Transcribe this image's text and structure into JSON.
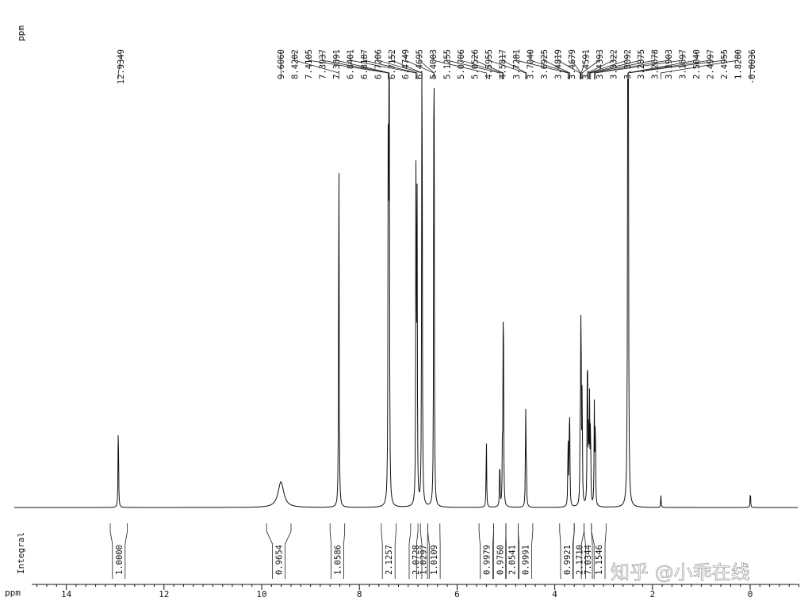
{
  "chart_data": {
    "type": "line",
    "title": "",
    "xlabel": "ppm",
    "ylabel": "",
    "xlim": [
      15.4,
      -1.2
    ],
    "x_axis_reversed": true,
    "x_tick_labels": [
      "14",
      "12",
      "10",
      "8",
      "6",
      "4",
      "2",
      "0"
    ],
    "peak_unit_label": "ppm",
    "integral_axis_label": "Integral",
    "peak_labels": [
      "12.9349",
      "9.6060",
      "8.4202",
      "7.4105",
      "7.3937",
      "7.3891",
      "6.8401",
      "6.8187",
      "6.7206",
      "6.7152",
      "6.4749",
      "6.4695",
      "5.4003",
      "5.1255",
      "5.0706",
      "5.0526",
      "4.5955",
      "4.5817",
      "3.7281",
      "3.7040",
      "3.6925",
      "3.4819",
      "3.4679",
      "3.4591",
      "3.4393",
      "3.3322",
      "3.3092",
      "3.2875",
      "3.2678",
      "3.1903",
      "3.1697",
      "2.5040",
      "2.4997",
      "2.4955",
      "1.8280",
      "-0.0036"
    ],
    "series": [
      {
        "x": [
          12.935,
          9.606,
          8.42,
          7.41,
          7.394,
          7.389,
          6.84,
          6.819,
          6.721,
          6.715,
          6.475,
          6.47,
          5.4,
          5.126,
          5.071,
          5.053,
          4.596,
          4.582,
          3.728,
          3.704,
          3.693,
          3.482,
          3.468,
          3.459,
          3.439,
          3.332,
          3.309,
          3.288,
          3.268,
          3.19,
          3.17,
          2.504,
          2.5,
          2.496,
          1.828,
          -0.004
        ],
        "y": [
          0.22,
          0.06,
          0.95,
          0.75,
          0.92,
          0.72,
          0.9,
          0.7,
          0.78,
          0.62,
          0.76,
          0.6,
          0.17,
          0.12,
          0.13,
          0.58,
          0.23,
          0.1,
          0.16,
          0.15,
          0.17,
          0.12,
          0.35,
          0.25,
          0.28,
          0.43,
          0.18,
          0.24,
          0.2,
          0.23,
          0.22,
          0.9,
          0.95,
          0.88,
          0.03,
          0.04
        ]
      }
    ],
    "integrals": [
      {
        "value": "1.0000",
        "from": 13.1,
        "to": 12.75
      },
      {
        "value": "0.9654",
        "from": 9.9,
        "to": 9.4
      },
      {
        "value": "1.0586",
        "from": 8.6,
        "to": 8.3
      },
      {
        "value": "2.1257",
        "from": 7.55,
        "to": 7.25
      },
      {
        "value": "2.0728",
        "from": 6.95,
        "to": 6.75
      },
      {
        "value": "1.0297",
        "from": 6.8,
        "to": 6.6
      },
      {
        "value": "1.0109",
        "from": 6.6,
        "to": 6.35
      },
      {
        "value": "0.9979",
        "from": 5.55,
        "to": 5.25
      },
      {
        "value": "0.9760",
        "from": 5.25,
        "to": 5.0
      },
      {
        "value": "2.0541",
        "from": 5.0,
        "to": 4.75
      },
      {
        "value": "0.9991",
        "from": 4.75,
        "to": 4.45
      },
      {
        "value": "0.9921",
        "from": 3.9,
        "to": 3.6
      },
      {
        "value": "2.1710",
        "from": 3.6,
        "to": 3.4
      },
      {
        "value": "7.0344",
        "from": 3.4,
        "to": 3.25
      },
      {
        "value": "1.1546",
        "from": 3.25,
        "to": 2.95
      }
    ],
    "grid": false,
    "legend": "none"
  },
  "watermark": {
    "text": "知乎 @小乖在线"
  }
}
